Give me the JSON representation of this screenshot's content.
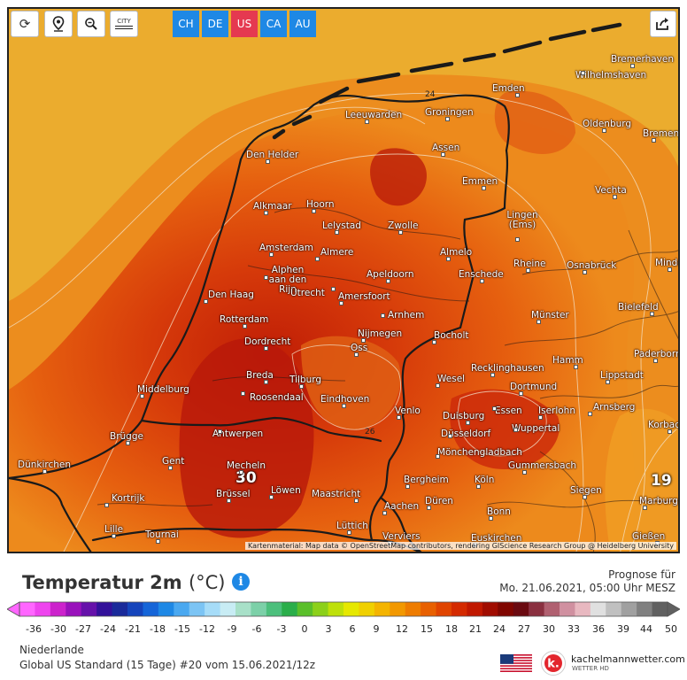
{
  "toolbar": {
    "buttons": [
      {
        "name": "refresh-icon",
        "glyph": "⟳"
      },
      {
        "name": "location-pin-icon",
        "glyph": "⚲"
      },
      {
        "name": "zoom-out-icon",
        "glyph": "⊖"
      }
    ],
    "city_toggle_label": "CITY",
    "regions": [
      "CH",
      "DE",
      "US",
      "CA",
      "AU"
    ],
    "active_region": "US"
  },
  "map": {
    "attribution": "Kartenmaterial: Map data © OpenStreetMap contributors, rendering GIScience Research Group @ Heidelberg University",
    "isolines": [
      "24",
      "26"
    ],
    "extreme_values": [
      "30",
      "19"
    ],
    "cities": [
      "Bremerhaven",
      "Wilhelmshaven",
      "Emden",
      "Groningen",
      "Leeuwarden",
      "Oldenburg",
      "Bremen",
      "Den Helder",
      "Assen",
      "Emmen",
      "Vechta",
      "Alkmaar",
      "Hoorn",
      "Lelystad",
      "Zwolle",
      "Lingen (Ems)",
      "Amsterdam",
      "Almere",
      "Almelo",
      "Rheine",
      "Osnabrück",
      "Minden",
      "Alphen aan den Rijn",
      "Utrecht",
      "Apeldoorn",
      "Enschede",
      "Den Haag",
      "Amersfoort",
      "Bielefeld",
      "Rotterdam",
      "Arnhem",
      "Münster",
      "Dordrecht",
      "Nijmegen",
      "Bocholt",
      "Oss",
      "Paderborn",
      "Breda",
      "Tilburg",
      "Recklinghausen",
      "Hamm",
      "Middelburg",
      "Roosendaal",
      "Wesel",
      "Dortmund",
      "Lippstadt",
      "Eindhoven",
      "Essen",
      "Iserlohn",
      "Venlo",
      "Duisburg",
      "Arnsberg",
      "Brügge",
      "Antwerpen",
      "Düsseldorf",
      "Wuppertal",
      "Korbach",
      "Mönchengladbach",
      "Dünkirchen",
      "Gent",
      "Mecheln",
      "Gummersbach",
      "Bergheim",
      "Köln",
      "Siegen",
      "Kortrijk",
      "Brüssel",
      "Löwen",
      "Maastricht",
      "Aachen",
      "Düren",
      "Marburg",
      "Bonn",
      "Lille",
      "Tournai",
      "Lüttich",
      "Verviers",
      "Euskirchen",
      "Gießen"
    ]
  },
  "footer": {
    "title": "Temperatur 2m",
    "unit": "(°C)",
    "prognose_label": "Prognose für",
    "prognose_date": "Mo. 21.06.2021, 05:00 Uhr MESZ",
    "region": "Niederlande",
    "model": "Global US Standard  (15 Tage)  #20 vom 15.06.2021/12z",
    "brand_name": "kachelmannwetter.com",
    "brand_sub": "WETTER HD"
  },
  "scale": {
    "ticks": [
      "-36",
      "-30",
      "-27",
      "-24",
      "-21",
      "-18",
      "-15",
      "-12",
      "-9",
      "-6",
      "-3",
      "0",
      "3",
      "6",
      "9",
      "12",
      "15",
      "18",
      "21",
      "24",
      "27",
      "30",
      "33",
      "36",
      "39",
      "44",
      "50"
    ],
    "colors": [
      "#ff66ff",
      "#ee44ee",
      "#cc22cc",
      "#9911bb",
      "#6611aa",
      "#33119a",
      "#1a2a9a",
      "#1544bb",
      "#1565d8",
      "#1e88e5",
      "#4aa8f0",
      "#7cc4f4",
      "#a6dcf8",
      "#c8ecf4",
      "#a8e0c8",
      "#7cd0a8",
      "#4cbf7c",
      "#2aae4a",
      "#5abf2a",
      "#8cd01a",
      "#bee00a",
      "#e6e800",
      "#f0d000",
      "#f4b400",
      "#f29800",
      "#ee7c00",
      "#e86000",
      "#e04400",
      "#d42a00",
      "#c01800",
      "#a00c00",
      "#800600",
      "#6a0a10",
      "#8a3040",
      "#b06070",
      "#d090a0",
      "#e8b8c0",
      "#e0e0e0",
      "#c0c0c0",
      "#a0a0a0",
      "#808080",
      "#606060"
    ]
  }
}
